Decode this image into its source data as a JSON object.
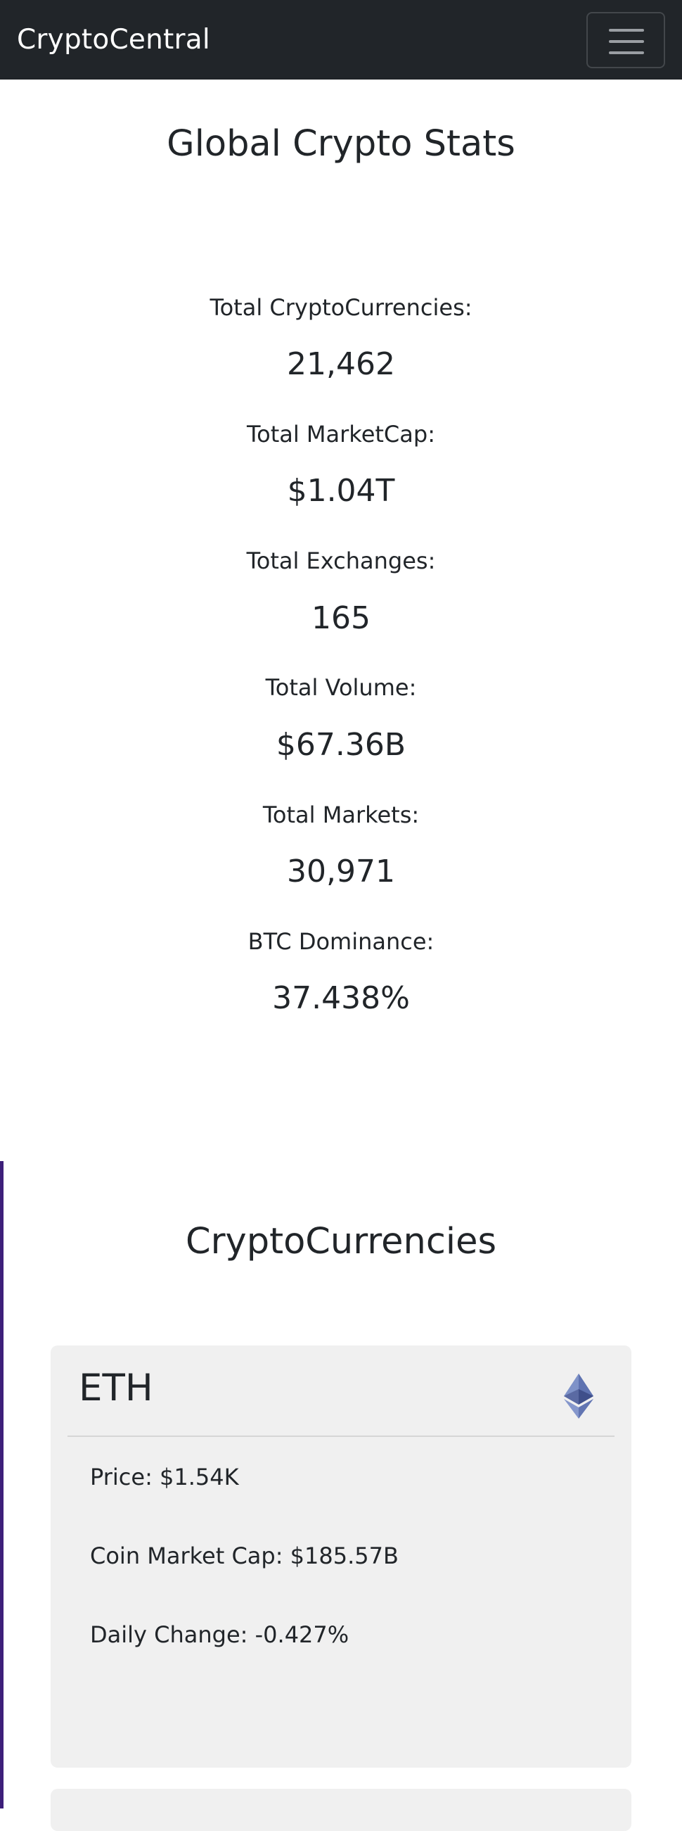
{
  "navbar": {
    "brand": "CryptoCentral",
    "menu_icon": "hamburger-icon"
  },
  "global_stats": {
    "title": "Global Crypto Stats",
    "items": [
      {
        "label": "Total CryptoCurrencies:",
        "value": "21,462"
      },
      {
        "label": "Total MarketCap:",
        "value": "$1.04T"
      },
      {
        "label": "Total Exchanges:",
        "value": "165"
      },
      {
        "label": "Total Volume:",
        "value": "$67.36B"
      },
      {
        "label": "Total Markets:",
        "value": "30,971"
      },
      {
        "label": "BTC Dominance:",
        "value": "37.438%"
      }
    ]
  },
  "cryptocurrencies": {
    "title": "CryptoCurrencies",
    "cards": [
      {
        "symbol": "ETH",
        "icon": "ethereum-icon",
        "price": "Price: $1.54K",
        "market_cap": "Coin Market Cap: $185.57B",
        "daily_change": "Daily Change: -0.427%"
      }
    ]
  },
  "colors": {
    "navbar": "#212529",
    "card_background": "#f0f0f0",
    "text": "#212529",
    "eth_icon": "#627eea"
  }
}
